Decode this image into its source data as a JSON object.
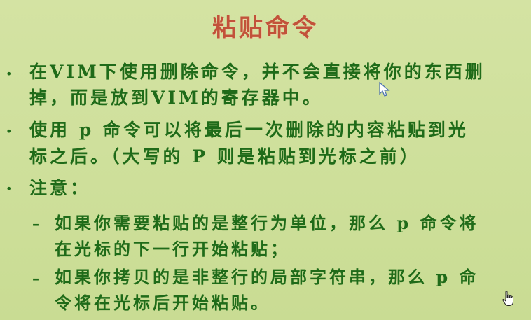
{
  "slide": {
    "title": "粘贴命令",
    "bullets": [
      {
        "line1": "在VIM下使用删除命令，并不会直接将你的东西删",
        "line2": "掉，而是放到VIM的寄存器中。"
      },
      {
        "line1": "使用 p 命令可以将最后一次删除的内容粘贴到光",
        "line2": "标之后。（大写的 P 则是粘贴到光标之前）"
      },
      {
        "line1": "注意："
      }
    ],
    "subitems": [
      {
        "line1": "如果你需要粘贴的是整行为单位，那么 p 命令将",
        "line2": "在光标的下一行开始粘贴；"
      },
      {
        "line1": "如果你拷贝的是非整行的局部字符串，那么 p 命",
        "line2": "令将在光标后开始粘贴。"
      }
    ],
    "bullet_glyph": "•",
    "dash_glyph": "–"
  },
  "icons": {
    "text_cursor": "mouse-arrow-icon",
    "hand_cursor": "hand-pointer-icon"
  },
  "colors": {
    "background": "#ccde97",
    "title": "#c2523a",
    "text": "#1f6b19"
  }
}
